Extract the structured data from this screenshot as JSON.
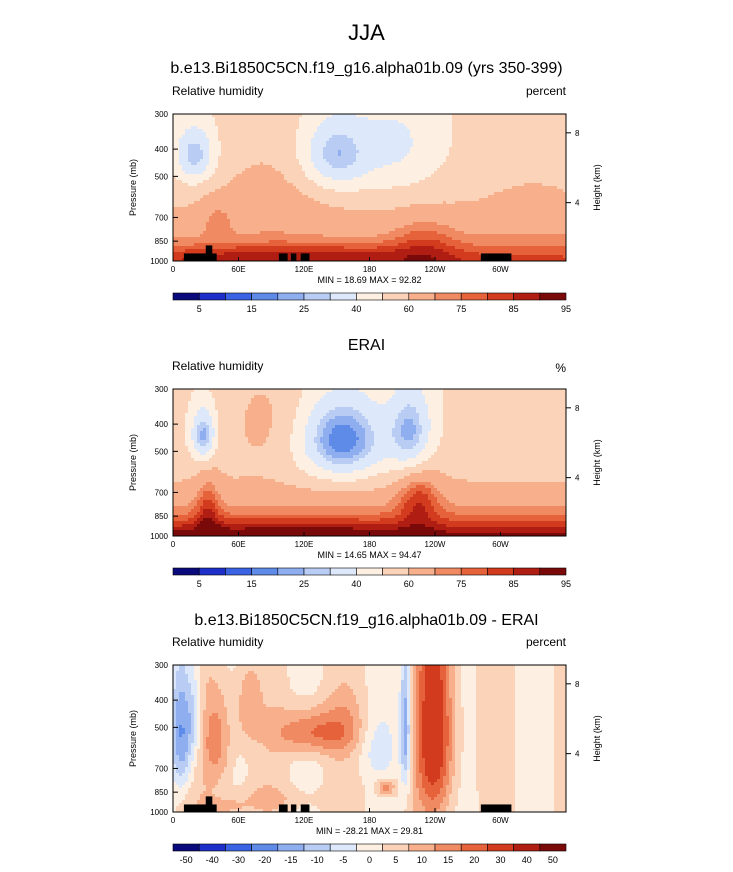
{
  "page": {
    "title": "JJA"
  },
  "panels": [
    {
      "title": "b.e13.Bi1850C5CN.f19_g16.alpha01b.09 (yrs 350-399)",
      "left_label": "Relative humidity",
      "right_label": "percent",
      "stats": "MIN = 18.69  MAX = 92.82"
    },
    {
      "title": "ERAI",
      "left_label": "Relative humidity",
      "right_label": "%",
      "stats": "MIN = 14.65  MAX = 94.47"
    },
    {
      "title": "b.e13.Bi1850C5CN.f19_g16.alpha01b.09 - ERAI",
      "left_label": "Relative humidity",
      "right_label": "percent",
      "stats": "MIN = -28.21  MAX = 29.81"
    }
  ],
  "axes": {
    "ylabel_left": "Pressure (mb)",
    "ylabel_right": "Height (km)",
    "pressure_ticks": [
      "300",
      "400",
      "500",
      "700",
      "850",
      "1000"
    ],
    "height_ticks": [
      "8",
      "4"
    ],
    "lon_ticks": [
      "0",
      "60E",
      "120E",
      "180",
      "120W",
      "60W"
    ]
  },
  "colorbars": [
    {
      "labels": [
        "5",
        "15",
        "25",
        "40",
        "60",
        "75",
        "85",
        "95"
      ]
    },
    {
      "labels": [
        "5",
        "15",
        "25",
        "40",
        "60",
        "75",
        "85",
        "95"
      ]
    },
    {
      "labels": [
        "-50",
        "-40",
        "-30",
        "-20",
        "-15",
        "-10",
        "-5",
        "0",
        "5",
        "10",
        "15",
        "20",
        "30",
        "40",
        "50"
      ]
    }
  ],
  "palette": [
    "#0b0a7c",
    "#1d2fc8",
    "#3a63e4",
    "#5e8ae8",
    "#8faef0",
    "#b9cdf4",
    "#dde8fb",
    "#fdefe2",
    "#fbd3b8",
    "#f7af8c",
    "#f08a62",
    "#e6623a",
    "#d23b1d",
    "#b01d12",
    "#7a0a0a"
  ],
  "chart_data": [
    {
      "type": "heatmap",
      "title": "b.e13.Bi1850C5CN.f19_g16.alpha01b.09 (yrs 350-399)",
      "variable": "Relative humidity",
      "units": "percent",
      "x_ticks": [
        "0",
        "60E",
        "120E",
        "180",
        "120W",
        "60W"
      ],
      "y_ticks_pressure_mb": [
        300,
        400,
        500,
        700,
        850,
        1000
      ],
      "levels": [
        5,
        10,
        15,
        20,
        25,
        30,
        40,
        50,
        60,
        70,
        75,
        80,
        85,
        90,
        95
      ],
      "min": 18.69,
      "max": 92.82
    },
    {
      "type": "heatmap",
      "title": "ERAI",
      "variable": "Relative humidity",
      "units": "%",
      "x_ticks": [
        "0",
        "60E",
        "120E",
        "180",
        "120W",
        "60W"
      ],
      "y_ticks_pressure_mb": [
        300,
        400,
        500,
        700,
        850,
        1000
      ],
      "levels": [
        5,
        10,
        15,
        20,
        25,
        30,
        40,
        50,
        60,
        70,
        75,
        80,
        85,
        90,
        95
      ],
      "min": 14.65,
      "max": 94.47
    },
    {
      "type": "heatmap",
      "title": "b.e13.Bi1850C5CN.f19_g16.alpha01b.09 - ERAI",
      "variable": "Relative humidity",
      "units": "percent",
      "x_ticks": [
        "0",
        "60E",
        "120E",
        "180",
        "120W",
        "60W"
      ],
      "y_ticks_pressure_mb": [
        300,
        400,
        500,
        700,
        850,
        1000
      ],
      "levels": [
        -50,
        -40,
        -30,
        -20,
        -15,
        -10,
        -5,
        0,
        5,
        10,
        15,
        20,
        30,
        40,
        50
      ],
      "min": -28.21,
      "max": 29.81
    }
  ]
}
